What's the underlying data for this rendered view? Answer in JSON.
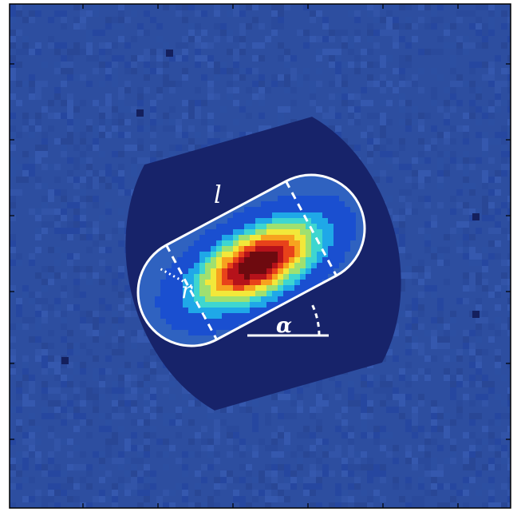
{
  "labels": {
    "length": "l",
    "radius": "r",
    "angle": "α"
  },
  "colors": {
    "background_noise": "#2d4ea0",
    "outer_region": "#17236a",
    "inner_base": "#2f62c0",
    "outline": "#ffffff",
    "frame": "#000000",
    "colormap": [
      "#0d1f7a",
      "#1a4fd0",
      "#1fa8e8",
      "#3ed6d0",
      "#9fe070",
      "#f2e83a",
      "#f7a21f",
      "#e8421a",
      "#b5121a",
      "#6e0a0f"
    ]
  },
  "icons": {
    "dead_pixel": "square-marker"
  }
}
